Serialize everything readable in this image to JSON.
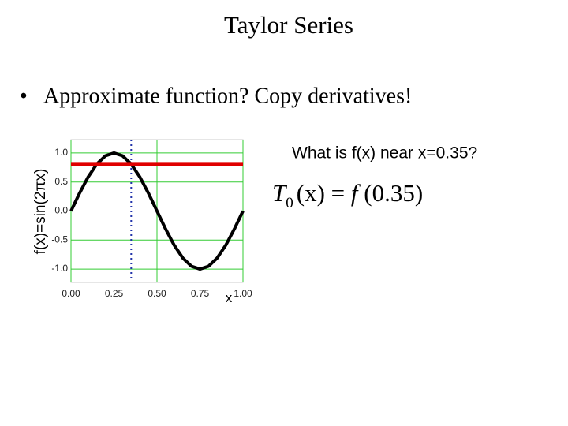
{
  "title": "Taylor Series",
  "bullet": "Approximate function? Copy derivatives!",
  "question": "What is f(x) near x=0.35?",
  "formula": {
    "T": "T",
    "sub": "0",
    "lhs": "(x) = ",
    "f": "f",
    "rhs": " (0.35)"
  },
  "chart_data": {
    "type": "line",
    "x_label": "x",
    "y_label": "f(x)=sin(2πx)",
    "x": [
      0,
      0.05,
      0.1,
      0.15,
      0.2,
      0.25,
      0.3,
      0.35,
      0.4,
      0.45,
      0.5,
      0.55,
      0.6,
      0.65,
      0.7,
      0.75,
      0.8,
      0.85,
      0.9,
      0.95,
      1
    ],
    "series": [
      {
        "name": "f(x)",
        "color": "#000000",
        "values": [
          0,
          0.309,
          0.588,
          0.809,
          0.951,
          1,
          0.951,
          0.809,
          0.588,
          0.309,
          0,
          -0.309,
          -0.588,
          -0.809,
          -0.951,
          -1,
          -0.951,
          -0.809,
          -0.588,
          -0.309,
          0
        ]
      }
    ],
    "reference_y": {
      "value": 0.81,
      "color": "#e00000"
    },
    "reference_x": {
      "value": 0.35,
      "color": "#2233aa"
    },
    "xlim": [
      0,
      1
    ],
    "xticks": [
      {
        "value": 0,
        "label": "0.00"
      },
      {
        "value": 0.25,
        "label": "0.25"
      },
      {
        "value": 0.5,
        "label": "0.50"
      },
      {
        "value": 0.75,
        "label": "0.75"
      },
      {
        "value": 1,
        "label": "1.00"
      }
    ],
    "ylim": [
      -1.23,
      1.23
    ],
    "yticks": [
      {
        "value": -1,
        "label": "-1.0"
      },
      -0.5,
      {
        "value": 0,
        "label": "0.0"
      },
      0.5,
      {
        "value": 1,
        "label": "1.0"
      }
    ],
    "grid": true,
    "grid_color": "#33cc33"
  }
}
